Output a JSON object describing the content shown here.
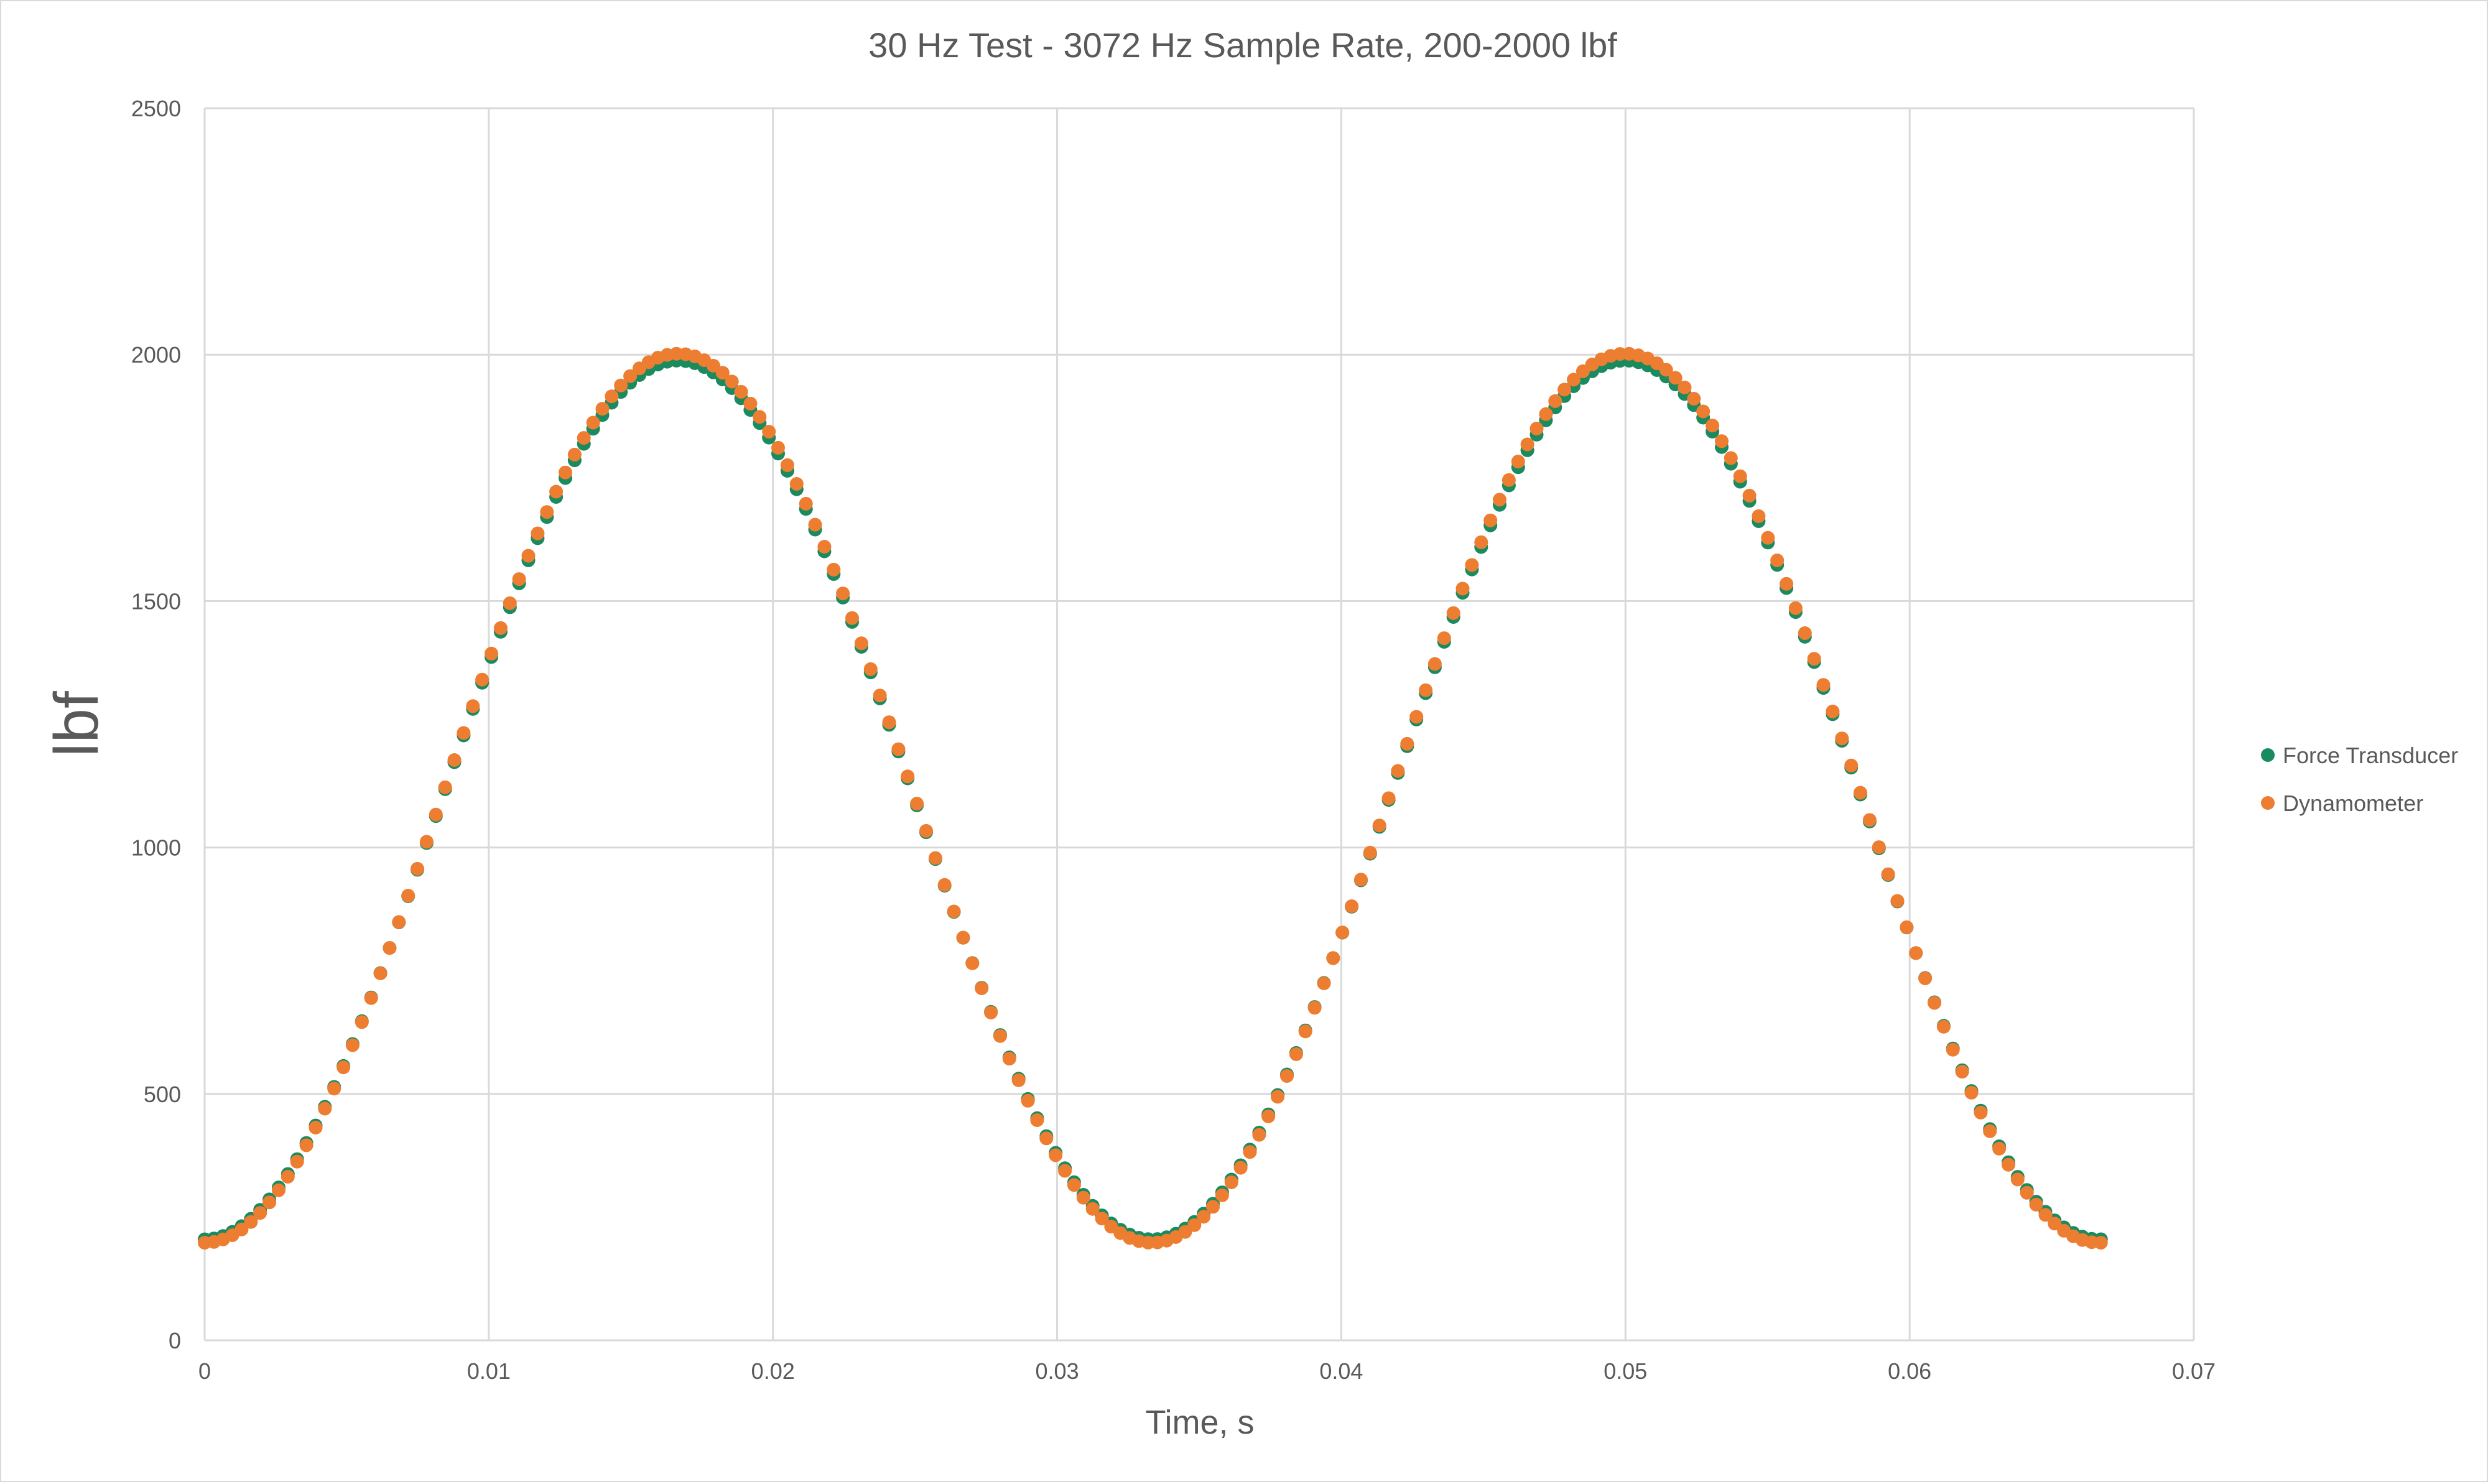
{
  "chart_data": {
    "type": "scatter",
    "title": "30 Hz Test - 3072 Hz Sample Rate, 200-2000 lbf",
    "xlabel": "Time, s",
    "ylabel": "lbf",
    "xlim": [
      0,
      0.07
    ],
    "ylim": [
      0,
      2500
    ],
    "x_ticks": [
      "0",
      "0.01",
      "0.02",
      "0.03",
      "0.04",
      "0.05",
      "0.06",
      "0.07"
    ],
    "y_ticks": [
      "0",
      "500",
      "1000",
      "1500",
      "2000",
      "2500"
    ],
    "grid": true,
    "legend_position": "right",
    "signal": {
      "frequency_hz": 30,
      "sample_rate_hz": 3072,
      "min_lbf": 200,
      "max_lbf": 2000,
      "samples": 206
    },
    "series": [
      {
        "name": "Force Transducer",
        "color": "#1a8a5f",
        "min": 205,
        "max": 1988
      },
      {
        "name": "Dynamometer",
        "color": "#ed7d31",
        "min": 198,
        "max": 2002
      }
    ]
  }
}
